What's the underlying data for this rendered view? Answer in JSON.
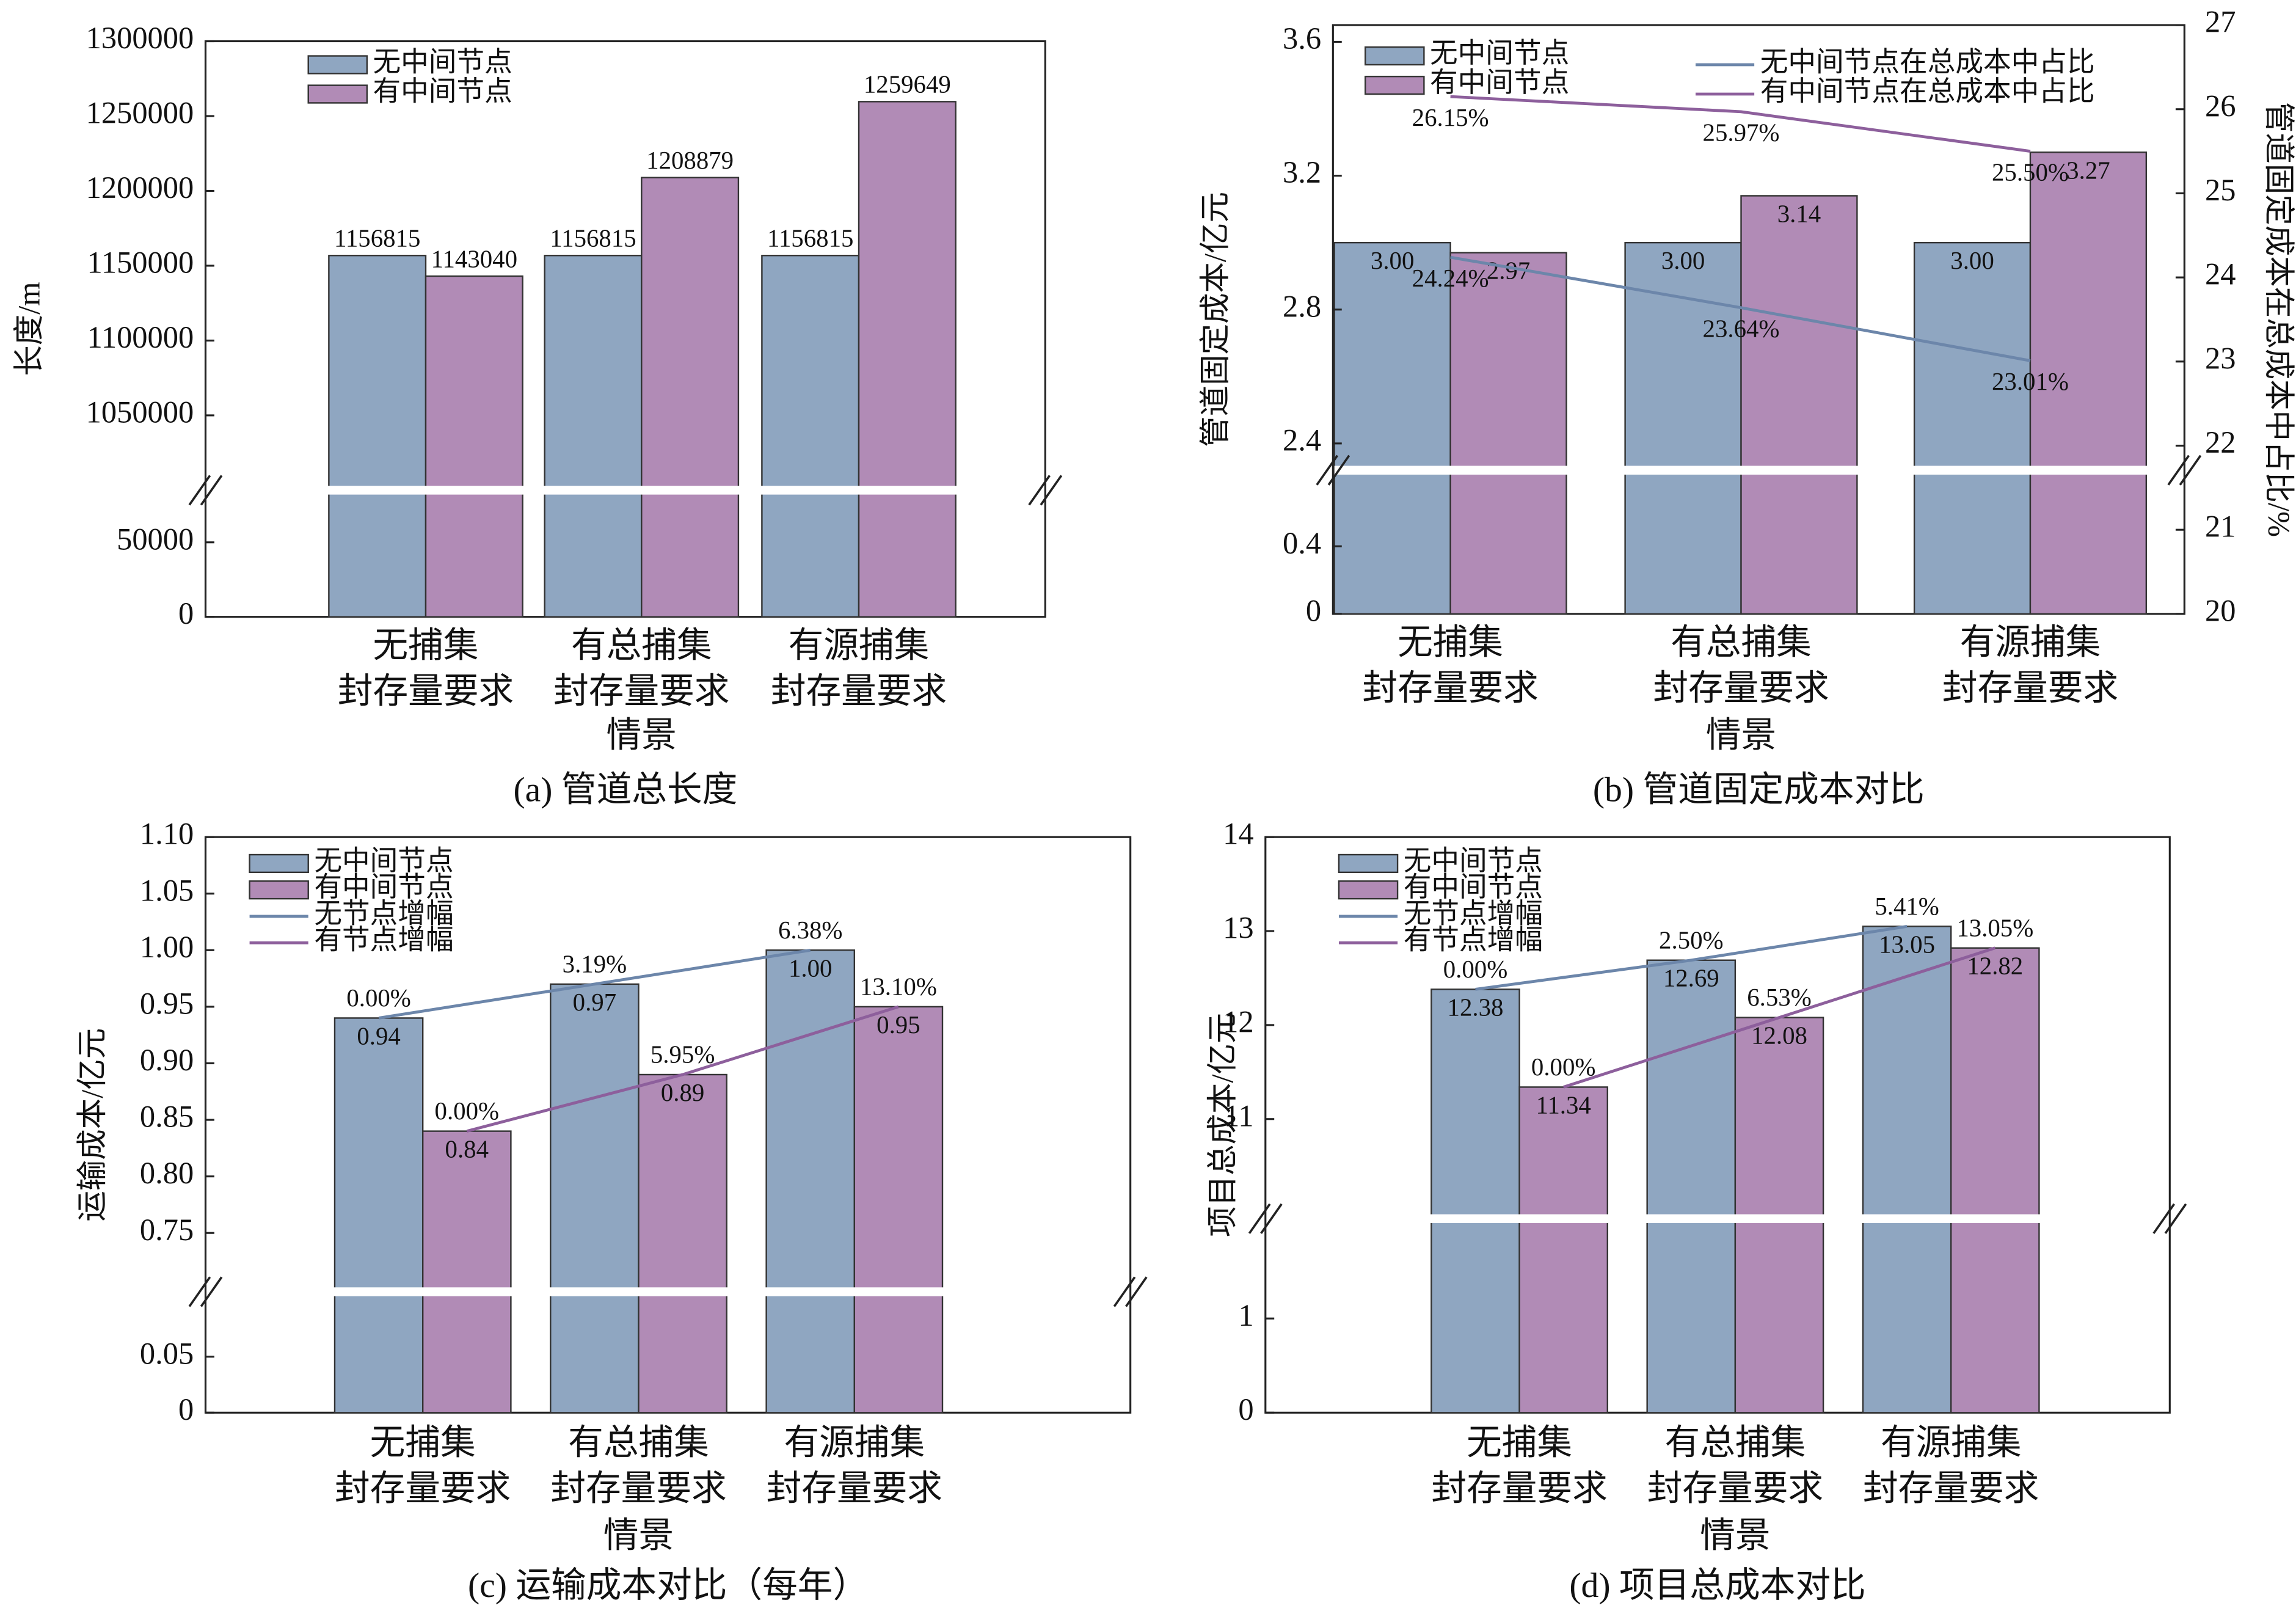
{
  "chart_data": [
    {
      "type": "bar",
      "title": "(a) 管道总长度",
      "xlabel": "情景",
      "ylabel": "长度/m",
      "categories": [
        "无捕集\n封存量要求",
        "有总捕集\n封存量要求",
        "有源捕集\n封存量要求"
      ],
      "ylim": [
        [
          0,
          85000
        ],
        [
          1000000,
          1300000
        ]
      ],
      "yticks": [
        0,
        50000,
        1050000,
        1100000,
        1150000,
        1200000,
        1250000,
        1300000
      ],
      "series": [
        {
          "name": "无中间节点",
          "type": "bar",
          "color": "#8fa6c1",
          "values": [
            1156815,
            1156815,
            1156815
          ]
        },
        {
          "name": "有中间节点",
          "type": "bar",
          "color": "#b18bb6",
          "values": [
            1143040,
            1208879,
            1259649
          ]
        }
      ]
    },
    {
      "type": "bar",
      "title": "(b) 管道固定成本对比",
      "xlabel": "情景",
      "ylabel": "管道固定成本/亿元",
      "y2label": "管道固定成本在总成本中占比/%",
      "categories": [
        "无捕集\n封存量要求",
        "有总捕集\n封存量要求",
        "有源捕集\n封存量要求"
      ],
      "ylim": [
        [
          0,
          0.85
        ],
        [
          2.32,
          3.65
        ]
      ],
      "yticks": [
        0,
        0.4,
        2.4,
        2.8,
        3.2,
        3.6
      ],
      "y2lim": [
        20,
        27
      ],
      "y2ticks": [
        20,
        21,
        22,
        23,
        24,
        25,
        26,
        27
      ],
      "series": [
        {
          "name": "无中间节点",
          "type": "bar",
          "color": "#8fa6c1",
          "values": [
            3.0,
            3.0,
            3.0
          ],
          "value_labels": [
            "3.00",
            "3.00",
            "3.00"
          ]
        },
        {
          "name": "有中间节点",
          "type": "bar",
          "color": "#b18bb6",
          "values": [
            2.97,
            3.14,
            3.27
          ],
          "value_labels": [
            "2.97",
            "3.14",
            "3.27"
          ]
        },
        {
          "name": "无中间节点在总成本中占比",
          "type": "line",
          "axis": "y2",
          "color": "#6c86aa",
          "values": [
            24.24,
            23.64,
            23.01
          ],
          "value_labels": [
            "24.24%",
            "23.64%",
            "23.01%"
          ]
        },
        {
          "name": "有中间节点在总成本中占比",
          "type": "line",
          "axis": "y2",
          "color": "#8d5f9c",
          "values": [
            26.15,
            25.97,
            25.5
          ],
          "value_labels": [
            "26.15%",
            "25.97%",
            "25.50%"
          ]
        }
      ]
    },
    {
      "type": "bar",
      "title": "(c) 运输成本对比（每年）",
      "xlabel": "情景",
      "ylabel": "运输成本/亿元",
      "categories": [
        "无捕集\n封存量要求",
        "有总捕集\n封存量要求",
        "有源捕集\n封存量要求"
      ],
      "ylim": [
        [
          0,
          0.108
        ],
        [
          0.698,
          1.1
        ]
      ],
      "yticks": [
        0,
        0.05,
        0.75,
        {
          "value": 0.8,
          "label": "0.80"
        },
        0.85,
        {
          "value": 0.9,
          "label": "0.90"
        },
        0.95,
        {
          "value": 1.0,
          "label": "1.00"
        },
        1.05,
        {
          "value": 1.1,
          "label": "1.10"
        }
      ],
      "series": [
        {
          "name": "无中间节点",
          "type": "bar",
          "color": "#8fa6c1",
          "values": [
            0.94,
            0.97,
            1.0
          ],
          "value_labels": [
            "0.94",
            "0.97",
            "1.00"
          ]
        },
        {
          "name": "有中间节点",
          "type": "bar",
          "color": "#b18bb6",
          "values": [
            0.84,
            0.89,
            0.95
          ],
          "value_labels": [
            "0.84",
            "0.89",
            "0.95"
          ]
        },
        {
          "name": "无节点增幅",
          "type": "line",
          "color": "#6c86aa",
          "values": [
            0,
            3.19,
            6.38
          ],
          "value_labels": [
            "0.00%",
            "3.19%",
            "6.38%"
          ]
        },
        {
          "name": "有节点增幅",
          "type": "line",
          "color": "#8d5f9c",
          "values": [
            0,
            5.95,
            13.1
          ],
          "value_labels": [
            "0.00%",
            "5.95%",
            "13.10%"
          ]
        }
      ]
    },
    {
      "type": "bar",
      "title": "(d) 项目总成本对比",
      "xlabel": "情景",
      "ylabel": "项目总成本/亿元",
      "categories": [
        "无捕集\n封存量要求",
        "有总捕集\n封存量要求",
        "有源捕集\n封存量要求"
      ],
      "ylim": [
        [
          0,
          2.06
        ],
        [
          9.94,
          14
        ]
      ],
      "yticks": [
        0,
        1,
        11,
        12,
        13,
        14
      ],
      "series": [
        {
          "name": "无中间节点",
          "type": "bar",
          "color": "#8fa6c1",
          "values": [
            12.38,
            12.69,
            13.05
          ],
          "value_labels": [
            "12.38",
            "12.69",
            "13.05"
          ]
        },
        {
          "name": "有中间节点",
          "type": "bar",
          "color": "#b18bb6",
          "values": [
            11.34,
            12.08,
            12.82
          ],
          "value_labels": [
            "11.34",
            "12.08",
            "12.82"
          ]
        },
        {
          "name": "无节点增幅",
          "type": "line",
          "color": "#6c86aa",
          "values": [
            0,
            2.5,
            5.41
          ],
          "value_labels": [
            "0.00%",
            "2.50%",
            "5.41%"
          ]
        },
        {
          "name": "有节点增幅",
          "type": "line",
          "color": "#8d5f9c",
          "values": [
            0,
            6.53,
            13.05
          ],
          "value_labels": [
            "0.00%",
            "6.53%",
            "13.05%"
          ]
        }
      ]
    }
  ]
}
